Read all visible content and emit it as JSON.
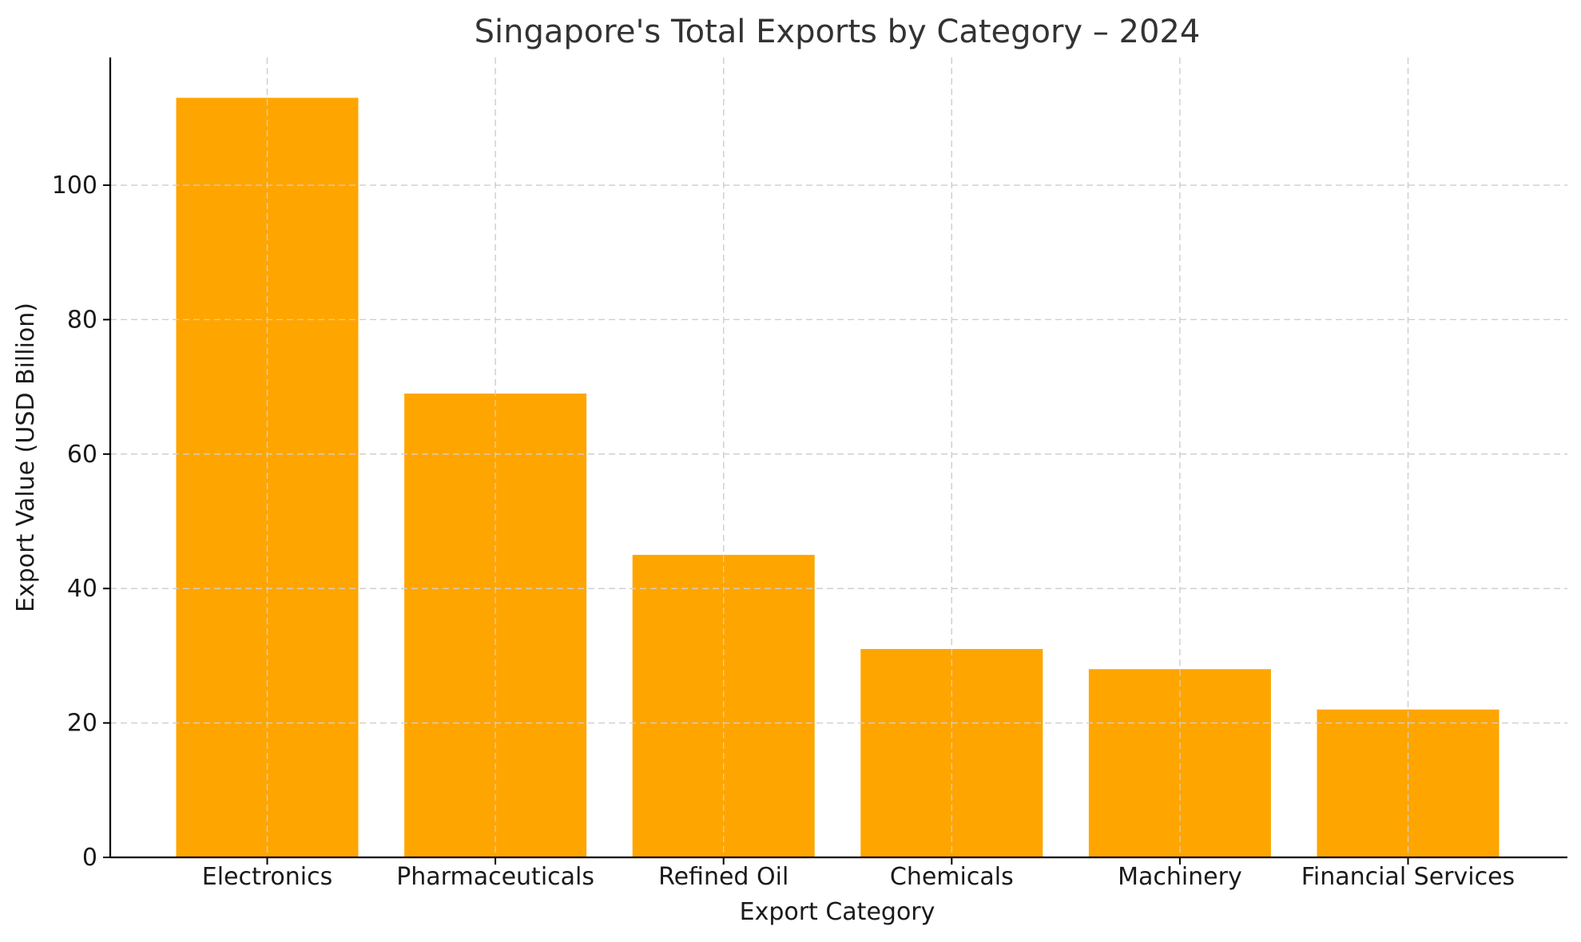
{
  "chart_data": {
    "type": "bar",
    "title": "Singapore's Total Exports by Category – 2024",
    "xlabel": "Export Category",
    "ylabel": "Export Value (USD Billion)",
    "categories": [
      "Electronics",
      "Pharmaceuticals",
      "Refined Oil",
      "Chemicals",
      "Machinery",
      "Financial Services"
    ],
    "values": [
      113,
      69,
      45,
      31,
      28,
      22
    ],
    "ylim": [
      0,
      119
    ],
    "yticks": [
      0,
      20,
      40,
      60,
      80,
      100
    ],
    "grid": true,
    "bar_color": "#ffa500"
  }
}
